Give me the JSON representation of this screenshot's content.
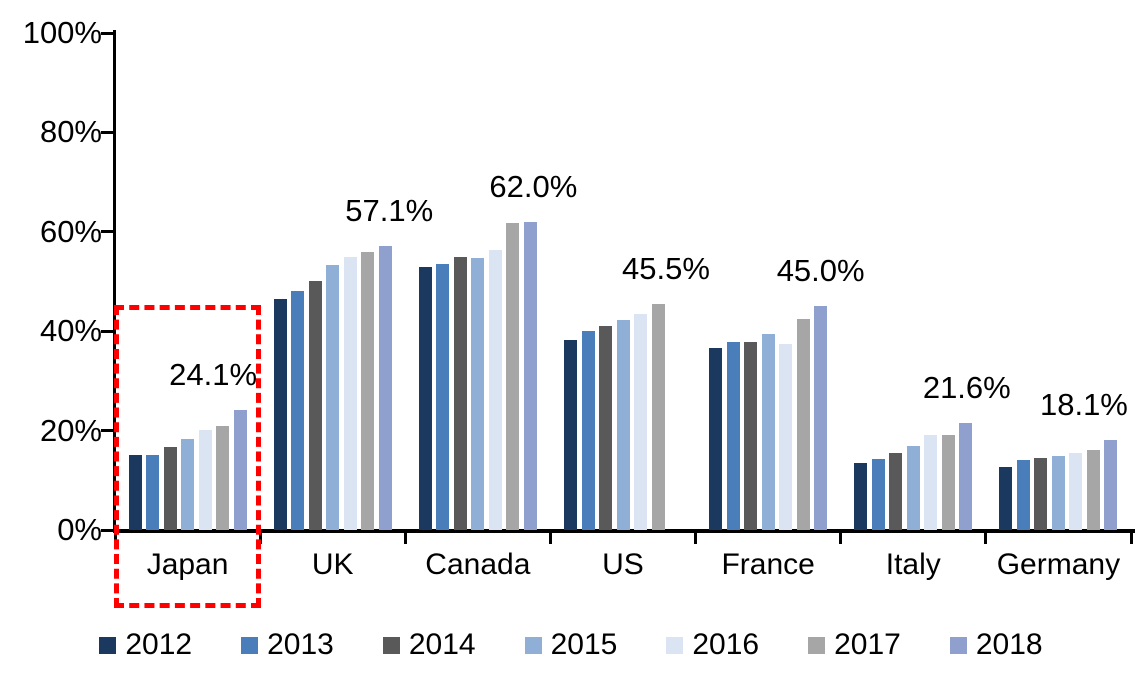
{
  "chart_data": {
    "type": "bar",
    "title": "",
    "categories": [
      "Japan",
      "UK",
      "Canada",
      "US",
      "France",
      "Italy",
      "Germany"
    ],
    "series": [
      {
        "name": "2012",
        "color": "#1B395E",
        "values": [
          15.0,
          46.4,
          53.0,
          38.2,
          36.6,
          13.4,
          12.7
        ]
      },
      {
        "name": "2013",
        "color": "#4A7EBB",
        "values": [
          15.1,
          48.0,
          53.5,
          40.1,
          37.8,
          14.2,
          14.0
        ]
      },
      {
        "name": "2014",
        "color": "#595959",
        "values": [
          16.7,
          50.1,
          54.9,
          41.0,
          37.8,
          15.5,
          14.5
        ]
      },
      {
        "name": "2015",
        "color": "#8FAFD6",
        "values": [
          18.3,
          53.3,
          54.7,
          42.2,
          39.5,
          17.0,
          14.9
        ]
      },
      {
        "name": "2016",
        "color": "#DAE4F2",
        "values": [
          20.1,
          54.9,
          56.3,
          43.5,
          37.5,
          19.1,
          15.5
        ]
      },
      {
        "name": "2017",
        "color": "#A6A6A6",
        "values": [
          21.0,
          56.0,
          61.7,
          45.5,
          42.4,
          19.2,
          16.0
        ]
      },
      {
        "name": "2018",
        "color": "#8FA0CE",
        "values": [
          24.1,
          57.1,
          62.0,
          null,
          45.0,
          21.6,
          18.1
        ]
      }
    ],
    "data_labels": [
      {
        "category": "Japan",
        "text": "24.1%"
      },
      {
        "category": "UK",
        "text": "57.1%"
      },
      {
        "category": "Canada",
        "text": "62.0%"
      },
      {
        "category": "US",
        "text": "45.5%"
      },
      {
        "category": "France",
        "text": "45.0%"
      },
      {
        "category": "Italy",
        "text": "21.6%"
      },
      {
        "category": "Germany",
        "text": "18.1%"
      }
    ],
    "y_axis": {
      "ticks": [
        "0%",
        "20%",
        "40%",
        "60%",
        "80%",
        "100%"
      ],
      "ylim": [
        0,
        100
      ],
      "grid": false
    },
    "x_axis": {
      "label": ""
    },
    "legend": {
      "position": "bottom",
      "entries": [
        "2012",
        "2013",
        "2014",
        "2015",
        "2016",
        "2017",
        "2018"
      ]
    },
    "annotation": {
      "type": "dashed-box",
      "color": "#FF0000",
      "target": "Japan"
    }
  }
}
